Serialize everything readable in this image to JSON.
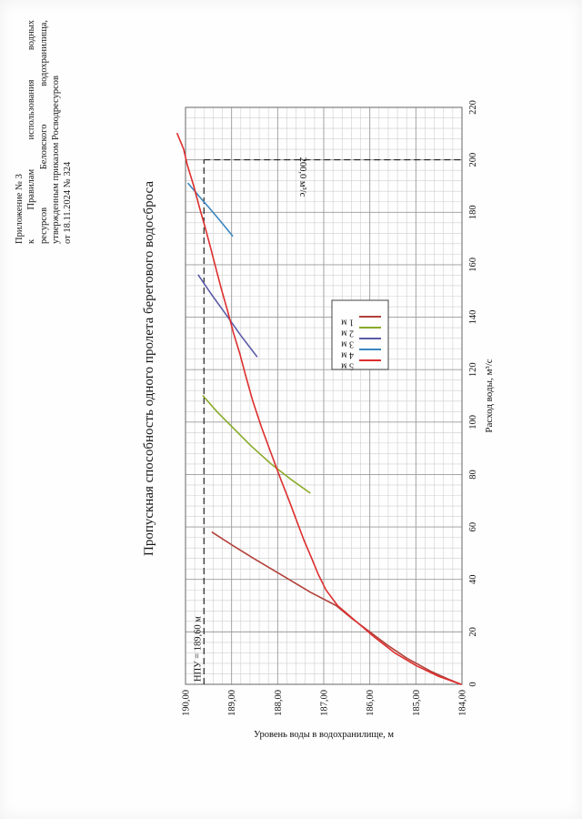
{
  "appendix": {
    "line1": "Приложение № 3",
    "line2_words": [
      "к",
      "Правилам",
      "использования",
      "водных"
    ],
    "line3_words": [
      "ресурсов",
      "Беловского",
      "водохранилища,"
    ],
    "line4": "утвержденным приказом Росводресурсов",
    "line5": "от 18.11.2024 № 324"
  },
  "chart_data": {
    "type": "line",
    "title": "Пропускная способность одного пролета берегового водосброса",
    "xlabel": "Расход воды, м³/с",
    "ylabel": "Уровень воды в водохранилище, м",
    "xlim": [
      0,
      220
    ],
    "ylim": [
      184.0,
      190.0
    ],
    "x_ticks": [
      "0",
      "20",
      "40",
      "60",
      "80",
      "100",
      "120",
      "140",
      "160",
      "180",
      "200",
      "220"
    ],
    "y_ticks": [
      "184,00",
      "185,00",
      "186,00",
      "187,00",
      "188,00",
      "189,00",
      "190,00"
    ],
    "grid": true,
    "legend_position": "right",
    "series": [
      {
        "name": "1 м",
        "color": "#b2403a",
        "x": [
          0,
          2,
          5,
          10,
          15,
          20,
          25,
          30,
          35,
          41,
          48,
          53,
          58
        ],
        "y": [
          184.02,
          184.3,
          184.68,
          185.2,
          185.62,
          186.0,
          186.38,
          186.73,
          187.28,
          187.85,
          188.52,
          188.98,
          189.42
        ]
      },
      {
        "name": "2 м",
        "color": "#8aaa2a",
        "x": [
          73,
          78,
          84,
          91,
          98,
          104,
          110
        ],
        "y": [
          187.3,
          187.7,
          188.14,
          188.58,
          188.98,
          189.32,
          189.62
        ]
      },
      {
        "name": "3 м",
        "color": "#5a5aa8",
        "x": [
          125,
          133,
          141,
          149,
          156
        ],
        "y": [
          188.45,
          188.8,
          189.12,
          189.45,
          189.72
        ]
      },
      {
        "name": "4 м",
        "color": "#3a86bf",
        "x": [
          171,
          177,
          182,
          186,
          191
        ],
        "y": [
          188.98,
          189.26,
          189.5,
          189.7,
          189.94
        ]
      },
      {
        "name": "5 м",
        "color": "#dd2e2e",
        "x": [
          0,
          3,
          7,
          12,
          18,
          24,
          30,
          36,
          42,
          48,
          55,
          62,
          70,
          78,
          88,
          98,
          108,
          118,
          126,
          134,
          142,
          150,
          158,
          166,
          174,
          182,
          190,
          198,
          204,
          210
        ],
        "y": [
          184.02,
          184.5,
          184.98,
          185.46,
          185.9,
          186.3,
          186.7,
          186.95,
          187.12,
          187.26,
          187.43,
          187.58,
          187.75,
          187.93,
          188.14,
          188.35,
          188.54,
          188.7,
          188.82,
          188.96,
          189.08,
          189.21,
          189.33,
          189.45,
          189.57,
          189.7,
          189.82,
          189.96,
          190.04,
          190.18
        ]
      }
    ],
    "reference_lines": [
      {
        "label": "НПУ = 189,60 м",
        "axis": "y",
        "value": 189.6
      },
      {
        "label": "200,0 м³/с",
        "axis": "x",
        "value": 200.0
      }
    ]
  }
}
